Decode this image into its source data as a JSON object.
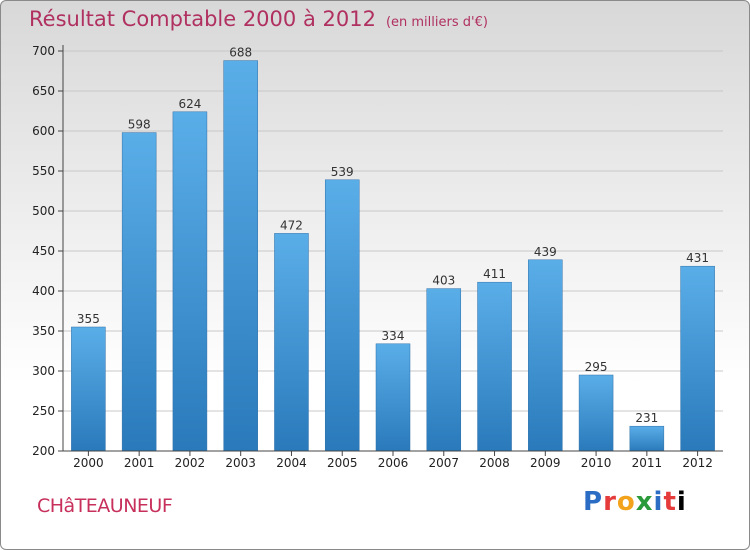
{
  "title": "Résultat Comptable 2000 à 2012",
  "unit_note": "(en milliers d'€)",
  "city": "CHâTEAUNEUF",
  "logo_text": "Proxiti",
  "colors": {
    "bar_light": "#5aaee8",
    "bar_dark": "#2a7abb",
    "title": "#b03060",
    "axis": "#444444",
    "grid": "#c8c8c8"
  },
  "chart_data": {
    "type": "bar",
    "title": "Résultat Comptable 2000 à 2012",
    "ylabel": "(en milliers d'€)",
    "xlabel": "",
    "categories": [
      "2000",
      "2001",
      "2002",
      "2003",
      "2004",
      "2005",
      "2006",
      "2007",
      "2008",
      "2009",
      "2010",
      "2011",
      "2012"
    ],
    "values": [
      355,
      598,
      624,
      688,
      472,
      539,
      334,
      403,
      411,
      439,
      295,
      231,
      431
    ],
    "ylim": [
      200,
      700
    ],
    "yticks": [
      200,
      250,
      300,
      350,
      400,
      450,
      500,
      550,
      600,
      650,
      700
    ],
    "grid": true
  }
}
